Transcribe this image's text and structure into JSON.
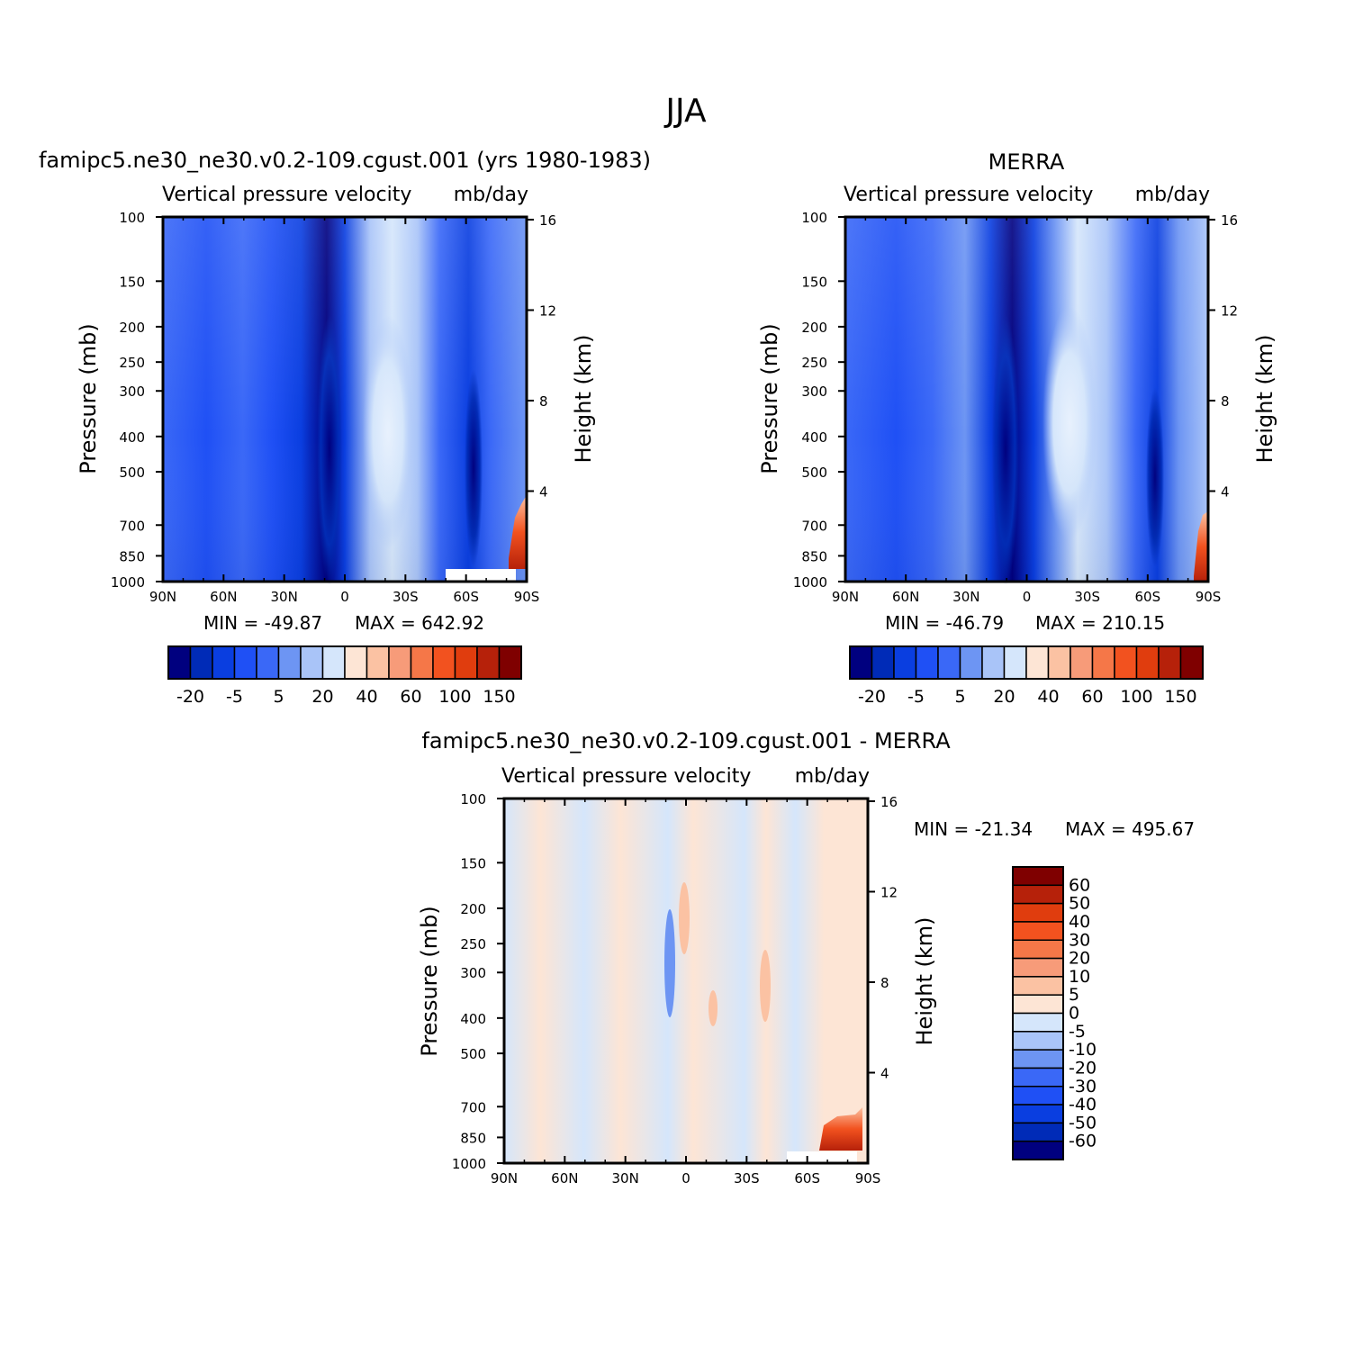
{
  "figure": {
    "title": "JJA"
  },
  "colors": {
    "blue_scale": [
      "#00007f",
      "#002bb7",
      "#0a3ee0",
      "#1f50f5",
      "#3a68f7",
      "#6d95f3",
      "#a9c4f8",
      "#d5e6fb"
    ],
    "red_scale": [
      "#fde5d5",
      "#fbc2a3",
      "#f79b79",
      "#f57748",
      "#f2521f",
      "#e03d0e",
      "#b6210a",
      "#7f0000"
    ],
    "diff_scale": [
      "#00007f",
      "#002bb7",
      "#0a3ee0",
      "#1f50f5",
      "#3a68f7",
      "#6d95f3",
      "#a9c4f8",
      "#d5e6fb",
      "#fde5d5",
      "#fbc2a3",
      "#f79b79",
      "#f57748",
      "#f2521f",
      "#e03d0e",
      "#b6210a",
      "#7f0000"
    ]
  },
  "chart_data": [
    {
      "type": "heatmap",
      "panel": "model",
      "title": "famipc5.ne30_ne30.v0.2-109.cgust.001 (yrs 1980-1983)",
      "subtitle_left": "Vertical pressure velocity",
      "subtitle_right": "mb/day",
      "ylabel": "Pressure (mb)",
      "ylabel_right": "Height (km)",
      "x_ticks": [
        "90N",
        "60N",
        "30N",
        "0",
        "30S",
        "60S",
        "90S"
      ],
      "y_ticks": [
        "100",
        "150",
        "200",
        "250",
        "300",
        "400",
        "500",
        "700",
        "850",
        "1000"
      ],
      "y_right_ticks": [
        "16",
        "12",
        "8",
        "4"
      ],
      "y_range_mb": [
        1000,
        100
      ],
      "y_scale": "log",
      "x_range": [
        "90N",
        "90S"
      ],
      "min_label": "MIN = -49.87",
      "max_label": "MAX = 642.92",
      "min": -49.87,
      "max": 642.92,
      "colorbar_labels": [
        "-20",
        "-5",
        "5",
        "20",
        "40",
        "60",
        "100",
        "150"
      ],
      "colorbar_orientation": "horizontal",
      "colorbar_bins": 16
    },
    {
      "type": "heatmap",
      "panel": "obs",
      "title": "MERRA",
      "subtitle_left": "Vertical pressure velocity",
      "subtitle_right": "mb/day",
      "ylabel": "Pressure (mb)",
      "ylabel_right": "Height (km)",
      "x_ticks": [
        "90N",
        "60N",
        "30N",
        "0",
        "30S",
        "60S",
        "90S"
      ],
      "y_ticks": [
        "100",
        "150",
        "200",
        "250",
        "300",
        "400",
        "500",
        "700",
        "850",
        "1000"
      ],
      "y_right_ticks": [
        "16",
        "12",
        "8",
        "4"
      ],
      "y_range_mb": [
        1000,
        100
      ],
      "y_scale": "log",
      "x_range": [
        "90N",
        "90S"
      ],
      "min_label": "MIN = -46.79",
      "max_label": "MAX = 210.15",
      "min": -46.79,
      "max": 210.15,
      "colorbar_labels": [
        "-20",
        "-5",
        "5",
        "20",
        "40",
        "60",
        "100",
        "150"
      ],
      "colorbar_orientation": "horizontal",
      "colorbar_bins": 16
    },
    {
      "type": "heatmap",
      "panel": "difference",
      "title": "famipc5.ne30_ne30.v0.2-109.cgust.001 - MERRA",
      "subtitle_left": "Vertical pressure velocity",
      "subtitle_right": "mb/day",
      "ylabel": "Pressure (mb)",
      "ylabel_right": "Height (km)",
      "x_ticks": [
        "90N",
        "60N",
        "30N",
        "0",
        "30S",
        "60S",
        "90S"
      ],
      "y_ticks": [
        "100",
        "150",
        "200",
        "250",
        "300",
        "400",
        "500",
        "700",
        "850",
        "1000"
      ],
      "y_right_ticks": [
        "16",
        "12",
        "8",
        "4"
      ],
      "y_range_mb": [
        1000,
        100
      ],
      "y_scale": "log",
      "x_range": [
        "90N",
        "90S"
      ],
      "min_label": "MIN = -21.34",
      "max_label": "MAX = 495.67",
      "min": -21.34,
      "max": 495.67,
      "colorbar_labels": [
        "60",
        "50",
        "40",
        "30",
        "20",
        "10",
        "5",
        "0",
        "-5",
        "-10",
        "-20",
        "-30",
        "-40",
        "-50",
        "-60"
      ],
      "colorbar_orientation": "vertical",
      "colorbar_bins": 16
    }
  ]
}
